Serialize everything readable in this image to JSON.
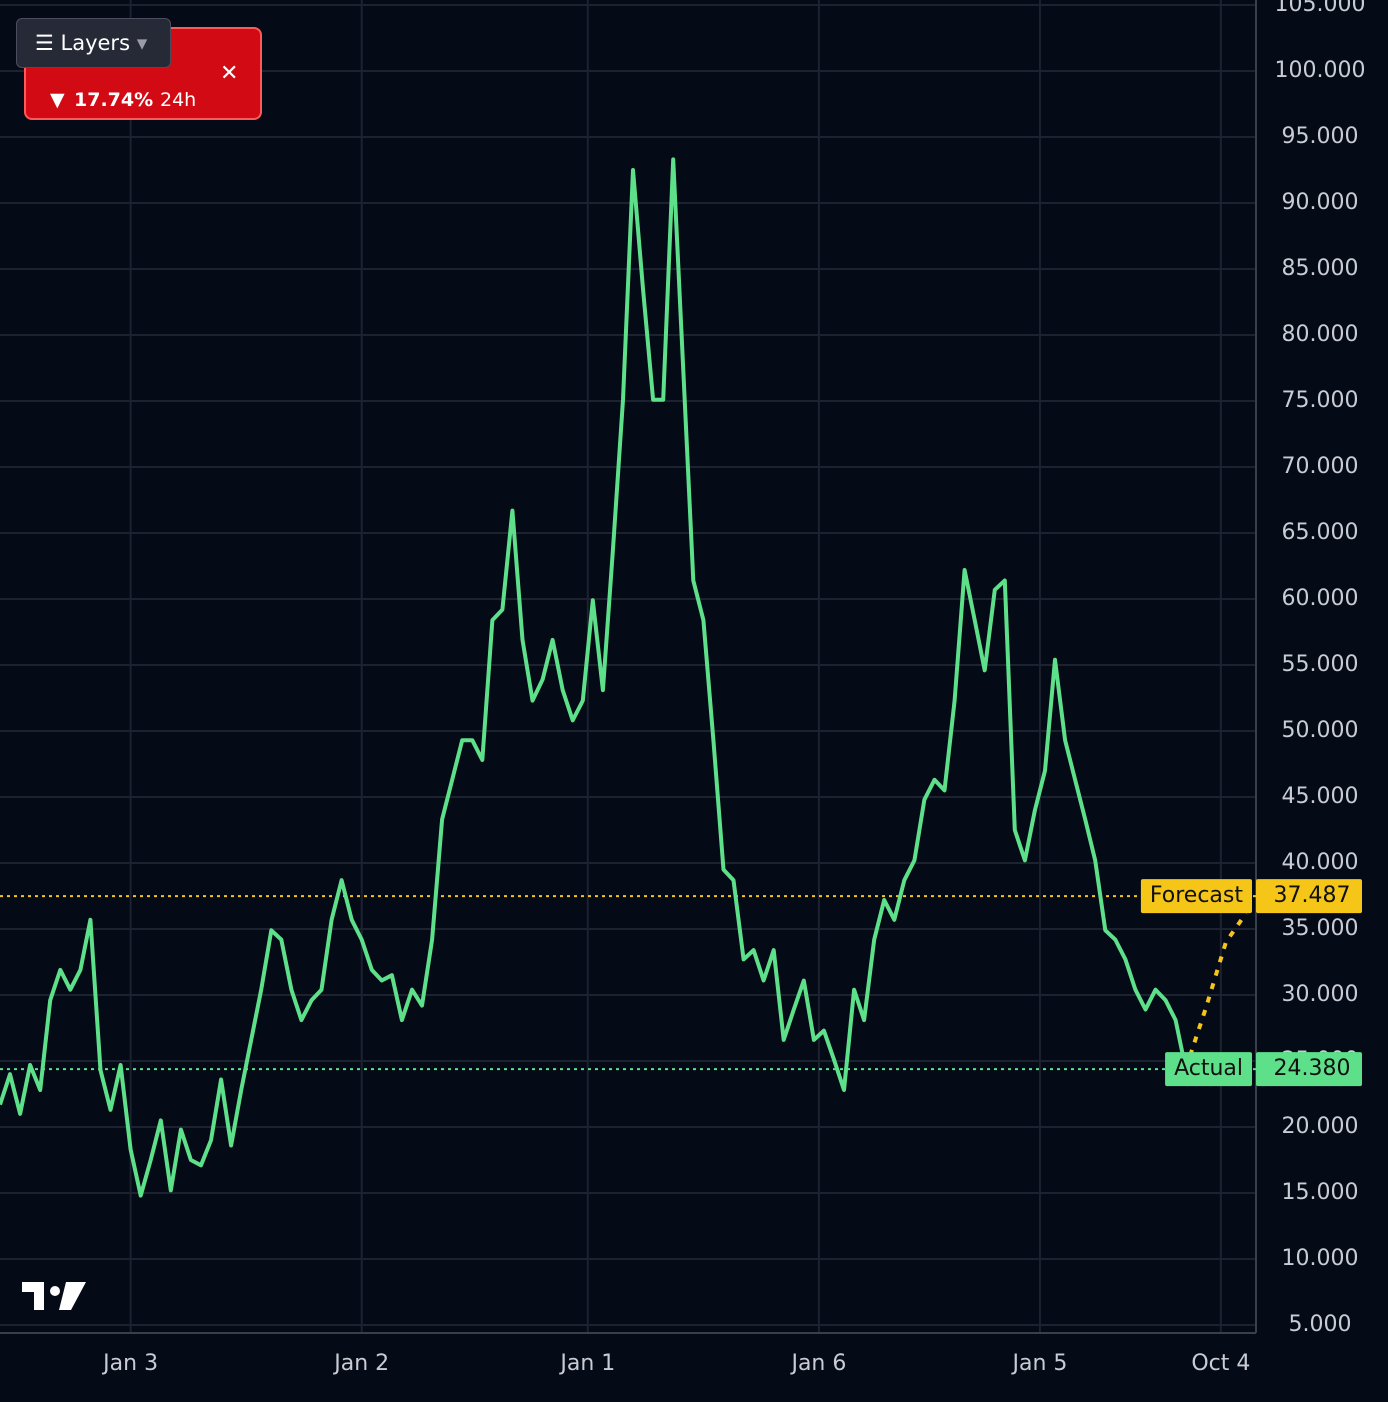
{
  "layers_button": "Layers",
  "ticker": {
    "change": "17.74%",
    "period": "24h"
  },
  "chart_data": {
    "type": "line",
    "xlim": [
      0,
      125
    ],
    "xticks": [
      {
        "value": 13,
        "label": "Jan 3"
      },
      {
        "value": 36,
        "label": "Jan 2"
      },
      {
        "value": 58.5,
        "label": "Jan 1"
      },
      {
        "value": 81.5,
        "label": "Jan 6"
      },
      {
        "value": 103.5,
        "label": "Jan 5"
      },
      {
        "value": 121.5,
        "label": "Oct 4"
      }
    ],
    "ylim": [
      5,
      105
    ],
    "yticks": [
      {
        "value": 5,
        "label": "5.000"
      },
      {
        "value": 10,
        "label": "10.000"
      },
      {
        "value": 15,
        "label": "15.000"
      },
      {
        "value": 20,
        "label": "20.000"
      },
      {
        "value": 25,
        "label": "25.000"
      },
      {
        "value": 30,
        "label": "30.000"
      },
      {
        "value": 35,
        "label": "35.000"
      },
      {
        "value": 40,
        "label": "40.000"
      },
      {
        "value": 45,
        "label": "45.000"
      },
      {
        "value": 50,
        "label": "50.000"
      },
      {
        "value": 55,
        "label": "55.000"
      },
      {
        "value": 60,
        "label": "60.000"
      },
      {
        "value": 65,
        "label": "65.000"
      },
      {
        "value": 70,
        "label": "70.000"
      },
      {
        "value": 75,
        "label": "75.000"
      },
      {
        "value": 80,
        "label": "80.000"
      },
      {
        "value": 85,
        "label": "85.000"
      },
      {
        "value": 90,
        "label": "90.000"
      },
      {
        "value": 95,
        "label": "95.000"
      },
      {
        "value": 100,
        "label": "100.000"
      },
      {
        "value": 105,
        "label": "105.000"
      }
    ],
    "grid": true,
    "series": [
      {
        "name": "Actual",
        "color": "#5ee08a",
        "values": [
          21.7,
          24,
          21,
          24.7,
          22.8,
          29.6,
          31.9,
          30.4,
          31.9,
          35.7,
          24.3,
          21.3,
          24.7,
          18.3,
          14.8,
          17.5,
          20.5,
          15.2,
          19.8,
          17.5,
          17.1,
          19,
          23.6,
          18.6,
          22.8,
          26.6,
          30.4,
          34.9,
          34.2,
          30.4,
          28.1,
          29.6,
          30.4,
          35.7,
          38.7,
          35.7,
          34.2,
          31.9,
          31.1,
          31.5,
          28.1,
          30.4,
          29.2,
          34.2,
          43.3,
          46.3,
          49.3,
          49.3,
          47.8,
          58.4,
          59.2,
          66.7,
          56.9,
          52.3,
          53.9,
          56.9,
          53.1,
          50.8,
          52.3,
          59.9,
          53.1,
          63.7,
          75.1,
          92.5,
          83.4,
          75.1,
          75.1,
          93.3,
          77.3,
          61.4,
          58.4,
          49.3,
          39.5,
          38.7,
          32.7,
          33.4,
          31.1,
          33.4,
          26.6,
          28.9,
          31.1,
          26.6,
          27.3,
          25.1,
          22.8,
          30.4,
          28.1,
          34.2,
          37.2,
          35.7,
          38.7,
          40.2,
          44.8,
          46.3,
          45.5,
          52.3,
          62.2,
          58.4,
          54.6,
          60.7,
          61.4,
          42.5,
          40.2,
          44,
          47,
          55.4,
          49.3,
          46.3,
          43.3,
          40.2,
          34.9,
          34.2,
          32.7,
          30.4,
          28.9,
          30.4,
          29.6,
          28.1,
          24.4
        ]
      },
      {
        "name": "Forecast",
        "color": "#f5c518",
        "x": [
          118,
          120,
          122,
          124
        ],
        "values": [
          24.4,
          29,
          34,
          36.2
        ]
      }
    ],
    "markers": [
      {
        "label": "Forecast",
        "value": 37.487,
        "color": "#f5c518"
      },
      {
        "label": "Actual",
        "value": 24.38,
        "value_label": "24.380",
        "color": "#5ee08a"
      }
    ]
  }
}
